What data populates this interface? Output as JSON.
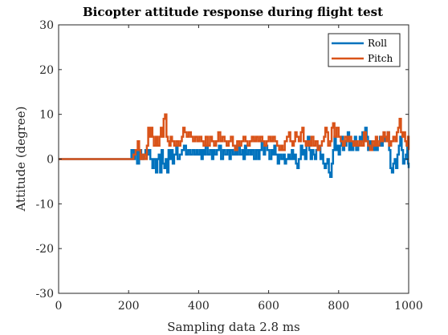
{
  "chart_data": {
    "type": "line",
    "title": "Bicopter attitude response during flight test",
    "xlabel": "Sampling data 2.8 ms",
    "ylabel": "Attitude (degree)",
    "xlim": [
      0,
      1000
    ],
    "ylim": [
      -30,
      30
    ],
    "x_ticks": [
      0,
      200,
      400,
      600,
      800,
      1000
    ],
    "y_ticks": [
      30,
      20,
      10,
      0,
      -10,
      -20,
      -30
    ],
    "x_tick_labels": [
      "0",
      "200",
      "400",
      "600",
      "800",
      "1000"
    ],
    "y_tick_labels": [
      "30",
      "20",
      "10",
      "0",
      "-10",
      "-20",
      "-30"
    ],
    "grid": false,
    "legend_position": "top-right",
    "step": true,
    "series": [
      {
        "name": "Roll",
        "color": "#0072BD",
        "points": [
          [
            0,
            0
          ],
          [
            200,
            0
          ],
          [
            208,
            2
          ],
          [
            214,
            0
          ],
          [
            218,
            2
          ],
          [
            224,
            -1
          ],
          [
            230,
            2
          ],
          [
            236,
            0
          ],
          [
            242,
            1
          ],
          [
            248,
            2
          ],
          [
            252,
            1
          ],
          [
            256,
            2
          ],
          [
            262,
            0
          ],
          [
            268,
            -2
          ],
          [
            272,
            0
          ],
          [
            278,
            -3
          ],
          [
            282,
            0
          ],
          [
            286,
            1
          ],
          [
            290,
            -3
          ],
          [
            294,
            2
          ],
          [
            298,
            -1
          ],
          [
            302,
            -2
          ],
          [
            306,
            0
          ],
          [
            310,
            -3
          ],
          [
            314,
            2
          ],
          [
            318,
            0
          ],
          [
            322,
            2
          ],
          [
            326,
            -1
          ],
          [
            330,
            1
          ],
          [
            336,
            3
          ],
          [
            340,
            0
          ],
          [
            346,
            1
          ],
          [
            352,
            2
          ],
          [
            358,
            3
          ],
          [
            364,
            1
          ],
          [
            370,
            2
          ],
          [
            376,
            1
          ],
          [
            382,
            2
          ],
          [
            388,
            1
          ],
          [
            394,
            2
          ],
          [
            398,
            1
          ],
          [
            404,
            2
          ],
          [
            408,
            0
          ],
          [
            412,
            2
          ],
          [
            416,
            1
          ],
          [
            420,
            3
          ],
          [
            426,
            1
          ],
          [
            432,
            2
          ],
          [
            438,
            0
          ],
          [
            442,
            2
          ],
          [
            446,
            1
          ],
          [
            452,
            2
          ],
          [
            458,
            3
          ],
          [
            464,
            0
          ],
          [
            470,
            2
          ],
          [
            476,
            1
          ],
          [
            482,
            2
          ],
          [
            488,
            0
          ],
          [
            492,
            2
          ],
          [
            498,
            1
          ],
          [
            504,
            3
          ],
          [
            508,
            1
          ],
          [
            512,
            3
          ],
          [
            518,
            1
          ],
          [
            524,
            2
          ],
          [
            528,
            0
          ],
          [
            532,
            3
          ],
          [
            536,
            1
          ],
          [
            542,
            2
          ],
          [
            548,
            1
          ],
          [
            552,
            2
          ],
          [
            558,
            0
          ],
          [
            564,
            2
          ],
          [
            570,
            0
          ],
          [
            574,
            2
          ],
          [
            580,
            4
          ],
          [
            586,
            1
          ],
          [
            590,
            3
          ],
          [
            596,
            2
          ],
          [
            602,
            0
          ],
          [
            608,
            2
          ],
          [
            612,
            1
          ],
          [
            616,
            3
          ],
          [
            620,
            1
          ],
          [
            626,
            -1
          ],
          [
            630,
            1
          ],
          [
            636,
            0
          ],
          [
            642,
            1
          ],
          [
            646,
            -1
          ],
          [
            650,
            0
          ],
          [
            656,
            1
          ],
          [
            660,
            0
          ],
          [
            666,
            2
          ],
          [
            670,
            0
          ],
          [
            674,
            1
          ],
          [
            678,
            -1
          ],
          [
            682,
            -2
          ],
          [
            686,
            0
          ],
          [
            692,
            3
          ],
          [
            696,
            1
          ],
          [
            700,
            2
          ],
          [
            704,
            0
          ],
          [
            708,
            3
          ],
          [
            712,
            5
          ],
          [
            716,
            2
          ],
          [
            720,
            0
          ],
          [
            724,
            2
          ],
          [
            728,
            1
          ],
          [
            732,
            0
          ],
          [
            736,
            2
          ],
          [
            742,
            3
          ],
          [
            748,
            0
          ],
          [
            752,
            1
          ],
          [
            756,
            -1
          ],
          [
            760,
            -2
          ],
          [
            764,
            -1
          ],
          [
            768,
            0
          ],
          [
            772,
            -3
          ],
          [
            776,
            -4
          ],
          [
            780,
            -1
          ],
          [
            784,
            2
          ],
          [
            788,
            5
          ],
          [
            792,
            2
          ],
          [
            796,
            3
          ],
          [
            800,
            1
          ],
          [
            804,
            3
          ],
          [
            808,
            5
          ],
          [
            812,
            2
          ],
          [
            816,
            3
          ],
          [
            822,
            4
          ],
          [
            826,
            6
          ],
          [
            830,
            2
          ],
          [
            834,
            4
          ],
          [
            838,
            2
          ],
          [
            842,
            3
          ],
          [
            846,
            5
          ],
          [
            850,
            2
          ],
          [
            856,
            3
          ],
          [
            860,
            5
          ],
          [
            864,
            4
          ],
          [
            868,
            6
          ],
          [
            872,
            4
          ],
          [
            876,
            7
          ],
          [
            880,
            5
          ],
          [
            884,
            2
          ],
          [
            888,
            4
          ],
          [
            892,
            2
          ],
          [
            896,
            3
          ],
          [
            900,
            2
          ],
          [
            904,
            4
          ],
          [
            908,
            2
          ],
          [
            912,
            3
          ],
          [
            918,
            5
          ],
          [
            922,
            3
          ],
          [
            926,
            4
          ],
          [
            932,
            5
          ],
          [
            936,
            4
          ],
          [
            940,
            6
          ],
          [
            944,
            2
          ],
          [
            948,
            -2
          ],
          [
            952,
            -3
          ],
          [
            956,
            -1
          ],
          [
            960,
            0
          ],
          [
            964,
            -2
          ],
          [
            968,
            1
          ],
          [
            972,
            3
          ],
          [
            976,
            5
          ],
          [
            980,
            2
          ],
          [
            984,
            -1
          ],
          [
            988,
            0
          ],
          [
            992,
            1
          ],
          [
            996,
            3
          ],
          [
            998,
            -1
          ],
          [
            1000,
            -2
          ]
        ]
      },
      {
        "name": "Pitch",
        "color": "#D95319",
        "points": [
          [
            0,
            0
          ],
          [
            200,
            0
          ],
          [
            214,
            1
          ],
          [
            220,
            2
          ],
          [
            226,
            4
          ],
          [
            230,
            2
          ],
          [
            234,
            0
          ],
          [
            240,
            1
          ],
          [
            246,
            0
          ],
          [
            252,
            3
          ],
          [
            256,
            7
          ],
          [
            260,
            5
          ],
          [
            264,
            7
          ],
          [
            268,
            5
          ],
          [
            272,
            3
          ],
          [
            278,
            5
          ],
          [
            282,
            3
          ],
          [
            288,
            5
          ],
          [
            292,
            7
          ],
          [
            296,
            5
          ],
          [
            300,
            9
          ],
          [
            304,
            10
          ],
          [
            308,
            5
          ],
          [
            312,
            4
          ],
          [
            316,
            3
          ],
          [
            320,
            5
          ],
          [
            324,
            4
          ],
          [
            330,
            3
          ],
          [
            336,
            4
          ],
          [
            342,
            3
          ],
          [
            348,
            4
          ],
          [
            352,
            5
          ],
          [
            356,
            7
          ],
          [
            360,
            6
          ],
          [
            366,
            5
          ],
          [
            372,
            6
          ],
          [
            378,
            5
          ],
          [
            384,
            4
          ],
          [
            390,
            5
          ],
          [
            396,
            4
          ],
          [
            402,
            5
          ],
          [
            408,
            4
          ],
          [
            414,
            3
          ],
          [
            420,
            5
          ],
          [
            426,
            3
          ],
          [
            432,
            5
          ],
          [
            438,
            4
          ],
          [
            444,
            3
          ],
          [
            450,
            4
          ],
          [
            456,
            6
          ],
          [
            462,
            4
          ],
          [
            468,
            5
          ],
          [
            474,
            4
          ],
          [
            480,
            3
          ],
          [
            486,
            4
          ],
          [
            492,
            5
          ],
          [
            498,
            3
          ],
          [
            504,
            2
          ],
          [
            510,
            4
          ],
          [
            516,
            3
          ],
          [
            522,
            4
          ],
          [
            528,
            5
          ],
          [
            534,
            4
          ],
          [
            540,
            3
          ],
          [
            546,
            4
          ],
          [
            552,
            5
          ],
          [
            558,
            4
          ],
          [
            564,
            5
          ],
          [
            570,
            4
          ],
          [
            576,
            5
          ],
          [
            582,
            4
          ],
          [
            588,
            3
          ],
          [
            594,
            4
          ],
          [
            600,
            5
          ],
          [
            606,
            4
          ],
          [
            612,
            5
          ],
          [
            618,
            4
          ],
          [
            624,
            3
          ],
          [
            630,
            2
          ],
          [
            636,
            3
          ],
          [
            640,
            2
          ],
          [
            646,
            4
          ],
          [
            652,
            5
          ],
          [
            658,
            6
          ],
          [
            662,
            4
          ],
          [
            668,
            3
          ],
          [
            672,
            4
          ],
          [
            676,
            6
          ],
          [
            680,
            5
          ],
          [
            686,
            4
          ],
          [
            692,
            6
          ],
          [
            696,
            7
          ],
          [
            700,
            4
          ],
          [
            706,
            3
          ],
          [
            712,
            4
          ],
          [
            718,
            3
          ],
          [
            722,
            5
          ],
          [
            728,
            3
          ],
          [
            734,
            4
          ],
          [
            740,
            2
          ],
          [
            746,
            3
          ],
          [
            752,
            4
          ],
          [
            758,
            5
          ],
          [
            762,
            7
          ],
          [
            766,
            6
          ],
          [
            770,
            3
          ],
          [
            776,
            4
          ],
          [
            780,
            7
          ],
          [
            784,
            8
          ],
          [
            788,
            5
          ],
          [
            794,
            7
          ],
          [
            800,
            5
          ],
          [
            806,
            4
          ],
          [
            812,
            3
          ],
          [
            818,
            5
          ],
          [
            824,
            4
          ],
          [
            830,
            5
          ],
          [
            836,
            4
          ],
          [
            842,
            3
          ],
          [
            848,
            4
          ],
          [
            854,
            3
          ],
          [
            860,
            4
          ],
          [
            866,
            3
          ],
          [
            872,
            6
          ],
          [
            878,
            4
          ],
          [
            884,
            3
          ],
          [
            890,
            2
          ],
          [
            896,
            4
          ],
          [
            902,
            3
          ],
          [
            906,
            5
          ],
          [
            910,
            3
          ],
          [
            916,
            4
          ],
          [
            920,
            5
          ],
          [
            924,
            4
          ],
          [
            928,
            6
          ],
          [
            932,
            5
          ],
          [
            936,
            4
          ],
          [
            940,
            6
          ],
          [
            944,
            3
          ],
          [
            950,
            4
          ],
          [
            956,
            5
          ],
          [
            962,
            4
          ],
          [
            966,
            6
          ],
          [
            970,
            7
          ],
          [
            974,
            9
          ],
          [
            978,
            6
          ],
          [
            982,
            5
          ],
          [
            986,
            6
          ],
          [
            990,
            4
          ],
          [
            994,
            3
          ],
          [
            998,
            5
          ],
          [
            1000,
            2
          ]
        ]
      }
    ]
  }
}
